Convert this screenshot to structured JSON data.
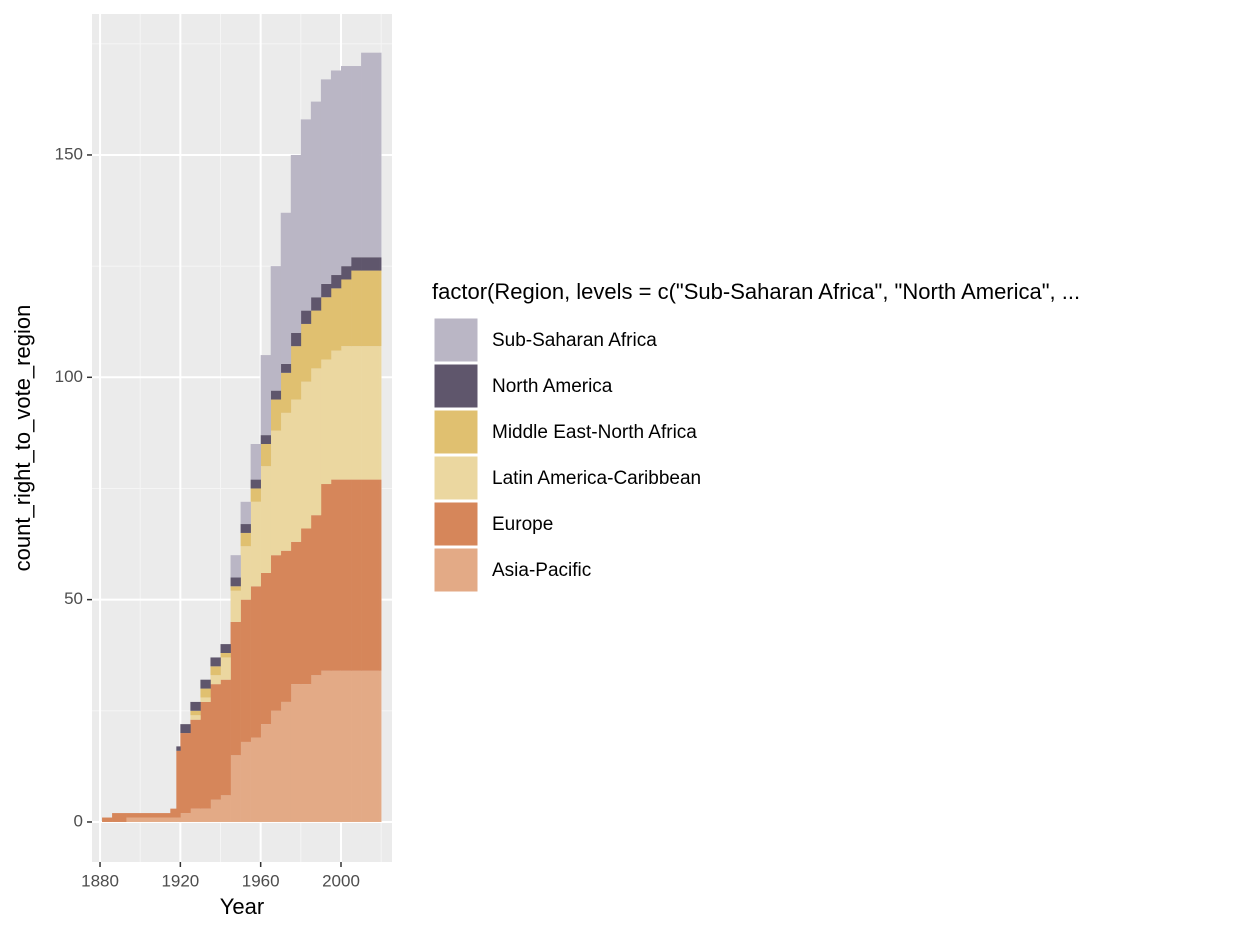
{
  "chart_data": {
    "type": "stacked_area",
    "x_label": "Year",
    "y_label": "count_right_to_vote_region",
    "legend_title": "factor(Region, levels = c(\"Sub-Saharan Africa\", \"North America\", ...",
    "x": [
      1881,
      1886,
      1893,
      1905,
      1915,
      1918,
      1920,
      1925,
      1930,
      1935,
      1940,
      1945,
      1950,
      1955,
      1960,
      1965,
      1970,
      1975,
      1980,
      1985,
      1990,
      1995,
      2000,
      2005,
      2010,
      2019
    ],
    "series": [
      {
        "name": "Asia-Pacific",
        "color": "#e3aa86",
        "values": [
          0,
          0,
          1,
          1,
          1,
          1,
          2,
          3,
          3,
          5,
          6,
          15,
          18,
          19,
          22,
          25,
          27,
          31,
          31,
          33,
          34,
          34,
          34,
          34,
          34,
          34
        ]
      },
      {
        "name": "Europe",
        "color": "#d6865a",
        "values": [
          1,
          2,
          1,
          1,
          2,
          15,
          18,
          20,
          24,
          26,
          26,
          30,
          32,
          34,
          34,
          35,
          34,
          32,
          35,
          36,
          42,
          43,
          43,
          43,
          43,
          43
        ]
      },
      {
        "name": "Latin America-Caribbean",
        "color": "#ebd7a0",
        "values": [
          0,
          0,
          0,
          0,
          0,
          0,
          0,
          1,
          1,
          2,
          5,
          7,
          12,
          19,
          24,
          28,
          31,
          32,
          33,
          33,
          28,
          29,
          30,
          30,
          30,
          30
        ]
      },
      {
        "name": "Middle East-North Africa",
        "color": "#e0c070",
        "values": [
          0,
          0,
          0,
          0,
          0,
          0,
          0,
          1,
          2,
          2,
          1,
          1,
          3,
          3,
          5,
          7,
          9,
          12,
          13,
          13,
          14,
          14,
          15,
          17,
          17,
          17
        ]
      },
      {
        "name": "North America",
        "color": "#5f566c",
        "values": [
          0,
          0,
          0,
          0,
          0,
          1,
          2,
          2,
          2,
          2,
          2,
          2,
          2,
          2,
          2,
          2,
          2,
          3,
          3,
          3,
          3,
          3,
          3,
          3,
          3,
          3
        ]
      },
      {
        "name": "Sub-Saharan Africa",
        "color": "#bab6c5",
        "values": [
          0,
          0,
          0,
          0,
          0,
          0,
          0,
          0,
          0,
          0,
          0,
          5,
          5,
          8,
          18,
          28,
          34,
          40,
          43,
          44,
          46,
          46,
          45,
          43,
          46,
          46
        ]
      }
    ],
    "xlim": [
      1876,
      2025.4
    ],
    "xticks": [
      1880,
      1920,
      1960,
      2000
    ],
    "ylim": [
      -9,
      181.7
    ],
    "yticks": [
      0,
      50,
      100,
      150
    ],
    "grid": true,
    "legend": "right"
  }
}
